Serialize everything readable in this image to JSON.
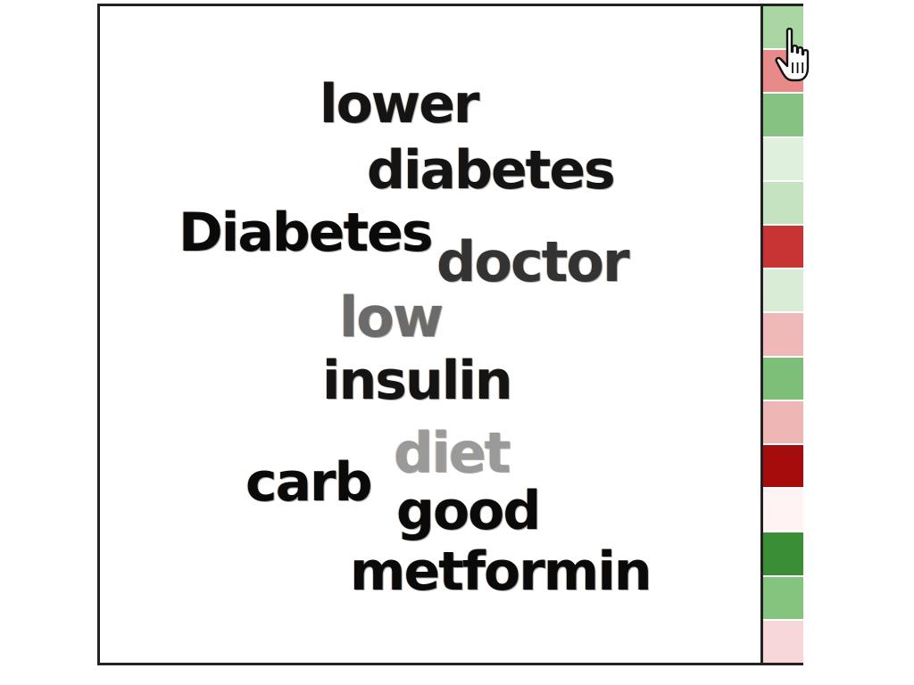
{
  "word_cloud": {
    "words": [
      {
        "text": "lower",
        "color": "#141414"
      },
      {
        "text": "diabetes",
        "color": "#141414"
      },
      {
        "text": "Diabetes",
        "color": "#0a0a0a"
      },
      {
        "text": "doctor",
        "color": "#333333"
      },
      {
        "text": "low",
        "color": "#6b6b6b"
      },
      {
        "text": "insulin",
        "color": "#141414"
      },
      {
        "text": "diet",
        "color": "#9a9a9a"
      },
      {
        "text": "carb",
        "color": "#0a0a0a"
      },
      {
        "text": "good",
        "color": "#0a0a0a"
      },
      {
        "text": "metformin",
        "color": "#0a0a0a"
      }
    ]
  },
  "color_strip": {
    "cells": [
      "#a9d6a3",
      "#e88a8a",
      "#86c282",
      "#dff0dc",
      "#c5e3c1",
      "#c83434",
      "#d9edd6",
      "#f0b9b9",
      "#7dbf78",
      "#efb6b6",
      "#a50d0d",
      "#fff4f3",
      "#3a8e36",
      "#85c47f",
      "#f7d7d7"
    ]
  },
  "cursor": {
    "icon": "hand-pointer-icon"
  }
}
